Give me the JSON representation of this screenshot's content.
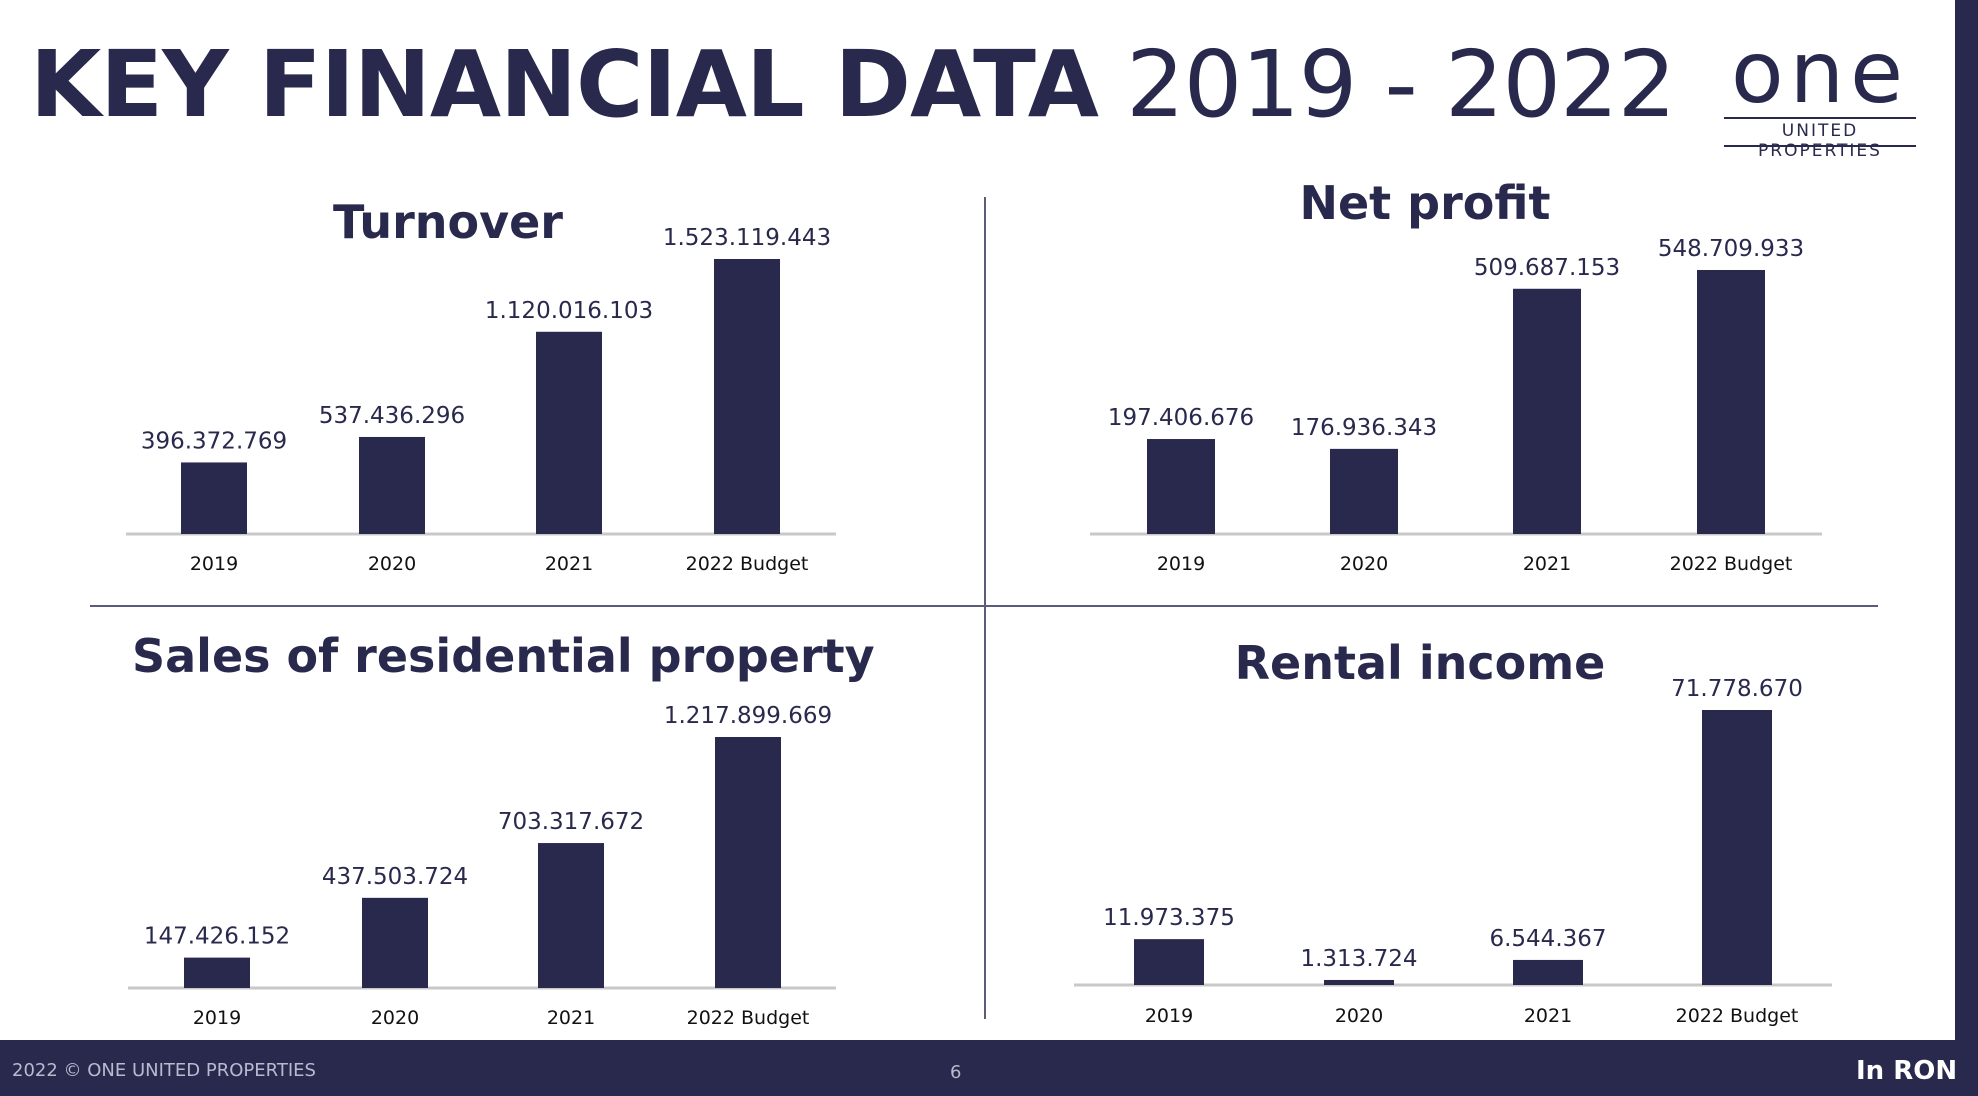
{
  "title": {
    "bold": "KEY FINANCIAL DATA",
    "light": "2019 - 2022"
  },
  "logo": {
    "word": "one",
    "sub": "UNITED PROPERTIES"
  },
  "footer": {
    "left": "2022  ©  ONE UNITED PROPERTIES",
    "page": "6",
    "right": "In RON"
  },
  "colors": {
    "bar": "#28294d",
    "axis": "#c8c8c8",
    "footer": "#28294d"
  },
  "chart_data": [
    {
      "type": "bar",
      "title": "Turnover",
      "categories": [
        "2019",
        "2020",
        "2021",
        "2022 Budget"
      ],
      "values": [
        396372769,
        537436296,
        1120016103,
        1523119443
      ],
      "labels": [
        "396.372.769",
        "537.436.296",
        "1.120.016.103",
        "1.523.119.443"
      ]
    },
    {
      "type": "bar",
      "title": "Net profit",
      "categories": [
        "2019",
        "2020",
        "2021",
        "2022 Budget"
      ],
      "values": [
        197406676,
        176936343,
        509687153,
        548709933
      ],
      "labels": [
        "197.406.676",
        "176.936.343",
        "509.687.153",
        "548.709.933"
      ]
    },
    {
      "type": "bar",
      "title": "Sales of residential property",
      "categories": [
        "2019",
        "2020",
        "2021",
        "2022 Budget"
      ],
      "values": [
        147426152,
        437503724,
        703317672,
        1217899669
      ],
      "labels": [
        "147.426.152",
        "437.503.724",
        "703.317.672",
        "1.217.899.669"
      ]
    },
    {
      "type": "bar",
      "title": "Rental income",
      "categories": [
        "2019",
        "2020",
        "2021",
        "2022 Budget"
      ],
      "values": [
        11973375,
        1313724,
        6544367,
        71778670
      ],
      "labels": [
        "11.973.375",
        "1.313.724",
        "6.544.367",
        "71.778.670"
      ]
    }
  ]
}
